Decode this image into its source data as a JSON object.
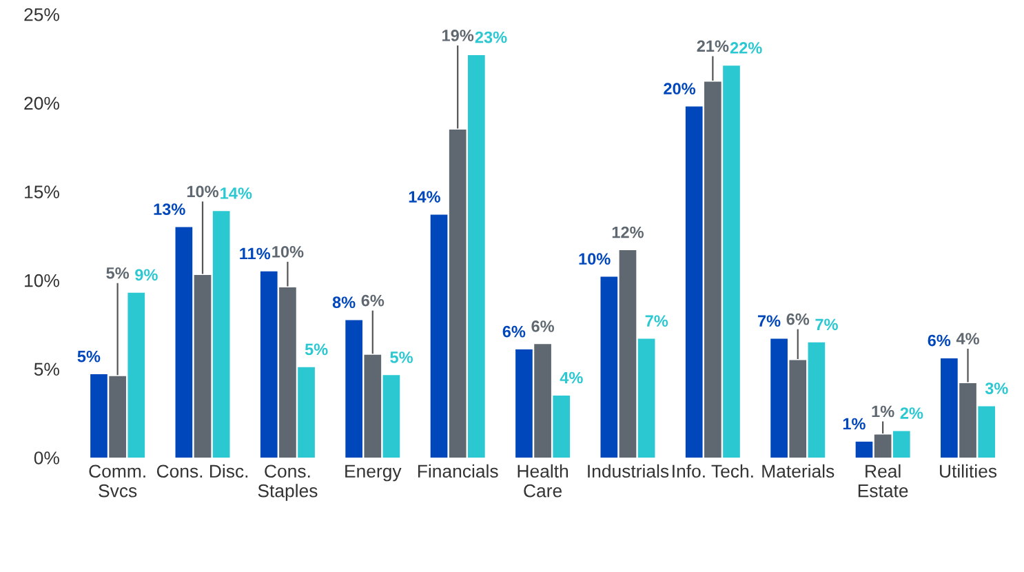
{
  "chart_data": {
    "type": "bar",
    "categories": [
      "Comm.\nSvcs",
      "Cons. Disc.",
      "Cons.\nStaples",
      "Energy",
      "Financials",
      "Health\nCare",
      "Industrials",
      "Info. Tech.",
      "Materials",
      "Real\nEstate",
      "Utilities"
    ],
    "series": [
      {
        "color": "#0047bb",
        "values": [
          4.7,
          13.0,
          10.5,
          7.75,
          13.7,
          6.1,
          10.2,
          19.8,
          6.7,
          0.9,
          5.6
        ],
        "value_labels": [
          "5%",
          "13%",
          "11%",
          "8%",
          "14%",
          "6%",
          "10%",
          "20%",
          "7%",
          "1%",
          "6%"
        ]
      },
      {
        "color": "#5f6870",
        "values": [
          4.6,
          10.3,
          9.6,
          5.8,
          18.5,
          6.4,
          11.7,
          21.2,
          5.5,
          1.3,
          4.2
        ],
        "value_labels": [
          "5%",
          "10%",
          "10%",
          "6%",
          "19%",
          "6%",
          "12%",
          "21%",
          "6%",
          "1%",
          "4%"
        ]
      },
      {
        "color": "#2bc8d2",
        "values": [
          9.3,
          13.9,
          5.1,
          4.65,
          22.7,
          3.5,
          6.7,
          22.1,
          6.5,
          1.5,
          2.9
        ],
        "value_labels": [
          "9%",
          "14%",
          "5%",
          "5%",
          "23%",
          "4%",
          "7%",
          "22%",
          "7%",
          "2%",
          "3%"
        ]
      }
    ],
    "ylim": [
      0,
      25
    ],
    "yticks": [
      {
        "value": 0,
        "label": "0%"
      },
      {
        "value": 5,
        "label": "5%"
      },
      {
        "value": 10,
        "label": "10%"
      },
      {
        "value": 15,
        "label": "15%"
      },
      {
        "value": 20,
        "label": "20%"
      },
      {
        "value": 25,
        "label": "25%"
      }
    ],
    "grid": false,
    "legend": false
  }
}
